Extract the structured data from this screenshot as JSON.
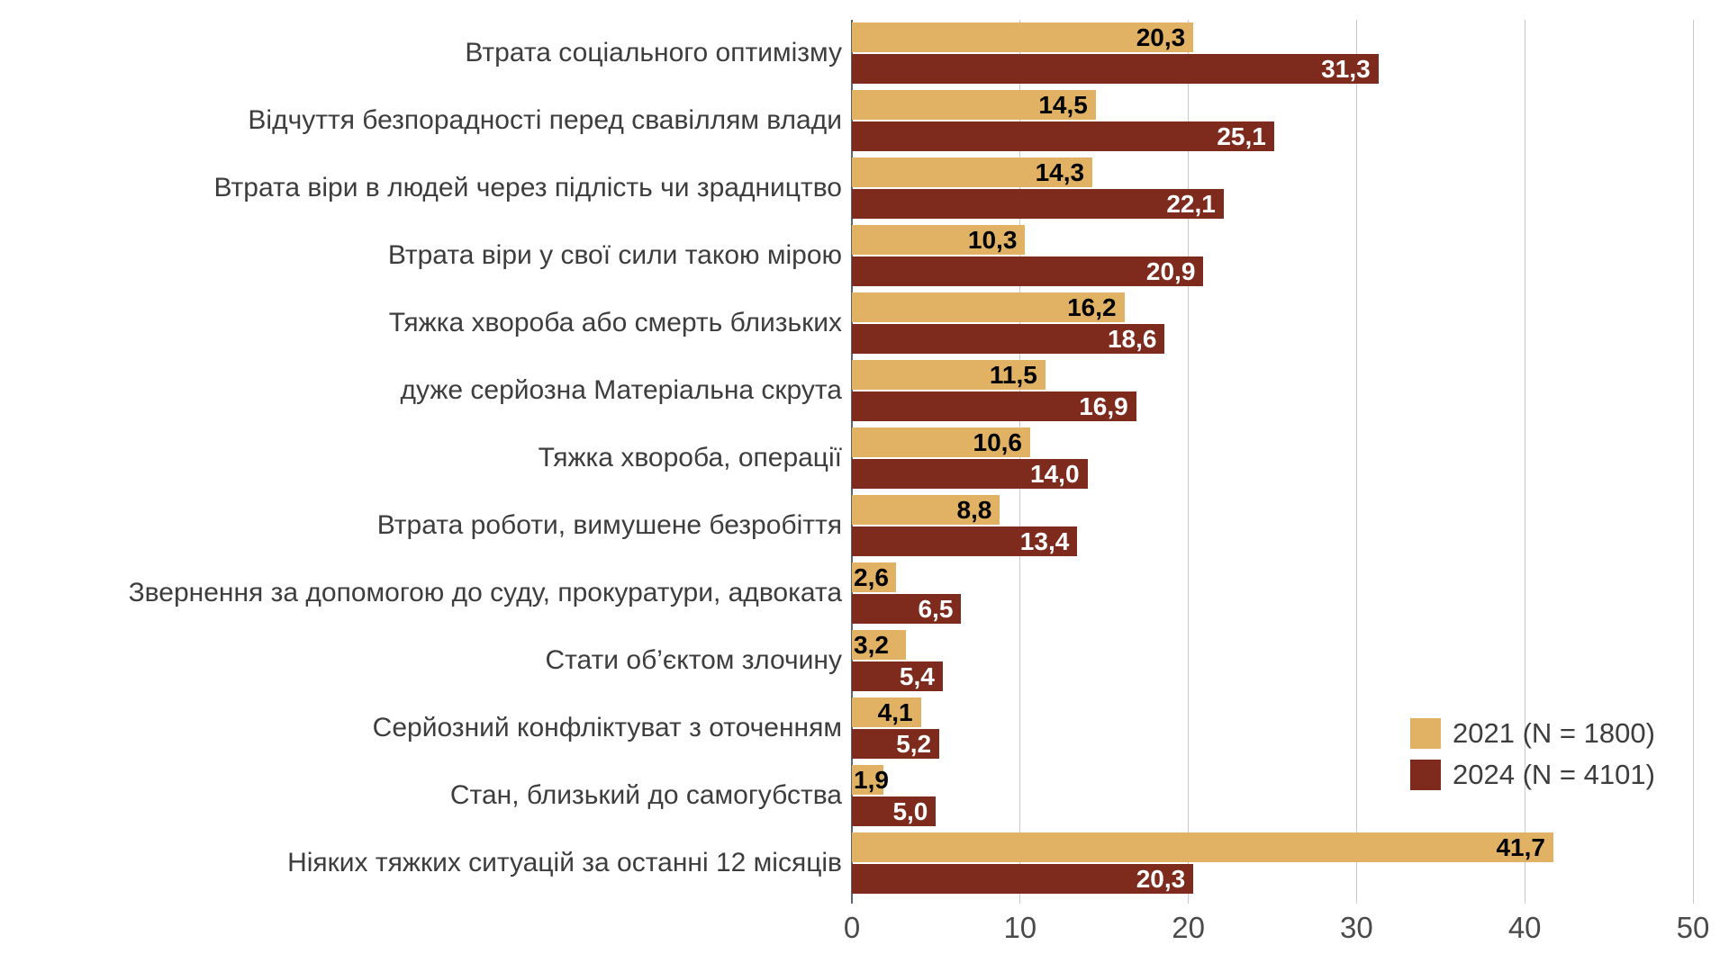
{
  "page": {
    "background_color": "#ffffff",
    "text_color": "#3d3d3d",
    "gridline_color": "#c9c9c9",
    "zero_axis_color": "#5b6570"
  },
  "chart_data": {
    "type": "bar",
    "orientation": "horizontal",
    "title": "",
    "xlabel": "",
    "ylabel": "",
    "xlim": [
      0,
      50
    ],
    "xticks": [
      0,
      10,
      20,
      30,
      40,
      50
    ],
    "grid": "vertical",
    "legend_position": "right-inside",
    "value_label_decimal": "comma",
    "categories": [
      "Втрата соціального оптимізму",
      "Відчуття безпорадності перед свавіллям влади",
      "Втрата віри в людей через підлість чи зрадництво",
      "Втрата віри у свої сили такою мірою",
      "Тяжка хвороба або смерть близьких",
      "дуже серйозна Матеріальна скрута",
      "Тяжка хвороба, операції",
      "Втрата роботи, вимушене безробіття",
      "Звернення за допомогою до суду, прокуратури, адвоката",
      "Стати об’єктом злочину",
      "Серйозний конфліктуват з оточенням",
      "Стан, близький до самогубства",
      "Ніяких тяжких ситуацій за останні 12 місяців"
    ],
    "series": [
      {
        "name": "2021 (N = 1800)",
        "color": "#e2b264",
        "value_label_color": "#000000",
        "values": [
          20.3,
          14.5,
          14.3,
          10.3,
          16.2,
          11.5,
          10.6,
          8.8,
          2.6,
          3.2,
          4.1,
          1.9,
          41.7
        ]
      },
      {
        "name": "2024 (N = 4101)",
        "color": "#7e2a1d",
        "value_label_color": "#ffffff",
        "values": [
          31.3,
          25.1,
          22.1,
          20.9,
          18.6,
          16.9,
          14.0,
          13.4,
          6.5,
          5.4,
          5.2,
          5.0,
          20.3
        ]
      }
    ]
  }
}
